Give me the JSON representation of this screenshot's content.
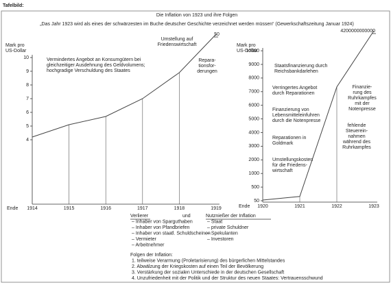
{
  "header": {
    "label": "Tafelbild:",
    "title": "Die Inflation von 1923 und ihre Folgen",
    "quote": "„Das Jahr 1923 wird als eines der schwärzesten im Buche deutscher Geschichte verzeichnet werden müssen“ (Gewerkschaftszeitung Januar 1924)"
  },
  "chart_data": [
    {
      "type": "line",
      "y_label": [
        "Mark pro",
        "US-Dollar"
      ],
      "x_prefix": "Ende",
      "categories": [
        "1914",
        "1915",
        "1916",
        "1917",
        "1918",
        "1919"
      ],
      "values": [
        4.2,
        5.1,
        5.7,
        7.0,
        8.9,
        50
      ],
      "color": "#444444",
      "ylim": [
        4,
        50
      ],
      "yticks": [
        4,
        5,
        6,
        7,
        8,
        9,
        10,
        50
      ],
      "annotations": [
        [
          "Vermindertes Angebot an Konsumgütern bei",
          "gleichzeitiger Ausdehnung des Geldvolumens;",
          "hochgradige Verschuldung des Staates"
        ],
        [
          "Umstellung auf",
          "Friedenswirtschaft"
        ],
        [
          "Repara-",
          "tionsfor-",
          "derungen"
        ]
      ]
    },
    {
      "type": "line",
      "y_label": [
        "Mark pro",
        "US-Dollar"
      ],
      "x_prefix": "Ende",
      "categories": [
        "1920",
        "1921",
        "1922",
        "1923"
      ],
      "values": [
        73,
        190,
        7350,
        4200000000000
      ],
      "color": "#444444",
      "ylim": [
        50,
        4200000000000
      ],
      "yticks": [
        50,
        500,
        1000,
        2000,
        3000,
        4000,
        5000,
        6000,
        7000,
        8000,
        9000,
        10000,
        4200000000000
      ],
      "annotations": [
        [
          "Staatsfinanzierung durch",
          "Reichsbankdarlehen"
        ],
        [
          "Verringertes Angebot",
          "durch Reparationen"
        ],
        [
          "Finanzierung von",
          "Lebensmitteleinfuhren",
          "durch die Notenpresse"
        ],
        [
          "Reparationen in",
          "Goldmark"
        ],
        [
          "Umstellungskosten",
          "für die Friedens-",
          "wirtschaft"
        ],
        [
          "Finanzie-",
          "rung des",
          "Ruhrkampfes",
          "mit der",
          "Notenpresse"
        ],
        [
          "fehlende",
          "Steuerein-",
          "nahmen",
          "während des",
          "Ruhrkampfes"
        ]
      ]
    }
  ],
  "losers": {
    "heading": "Verlierer",
    "items": [
      "– Inhaber von Sparguthaben",
      "– Inhaber von Pfandbriefen",
      "– Inhaber von staatl. Schuldscheinen",
      "– Vermieter",
      "– Arbeitnehmer"
    ]
  },
  "conjunction": "und",
  "winners": {
    "heading": "Nutznießer der Inflation",
    "items": [
      "– Staat",
      "– private Schuldner",
      "– Spekulanten",
      "– Investoren"
    ]
  },
  "consequences": {
    "heading": "Folgen der Inflation:",
    "items": [
      "1. teilweise Verarmung (Proletarisierung) des bürgerlichen Mittelstandes",
      "2. Abwälzung der Kriegskosten auf einen Teil der Bevölkerung",
      "3. Verstärkung der sozialen Unterschiede in der deutschen Gesellschaft",
      "4. Unzufriedenheit mit der Politik und der Struktur des neuen Staates: Vertrauensschwund"
    ]
  }
}
